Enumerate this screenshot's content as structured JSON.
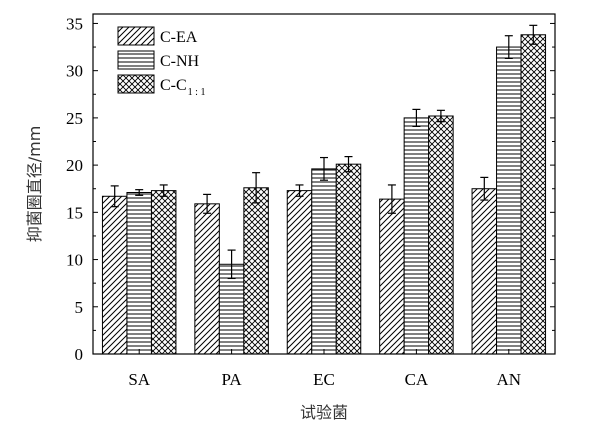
{
  "chart_data": {
    "type": "bar",
    "categories": [
      "SA",
      "PA",
      "EC",
      "CA",
      "AN"
    ],
    "series": [
      {
        "name": "C-EA",
        "name_main": "C-EA",
        "name_sub": "",
        "pattern": "diagonal",
        "values": [
          16.7,
          15.9,
          17.3,
          16.4,
          17.5
        ],
        "errors": [
          1.1,
          1.0,
          0.6,
          1.5,
          1.2
        ]
      },
      {
        "name": "C-NH",
        "name_main": "C-NH",
        "name_sub": "",
        "pattern": "horizontal",
        "values": [
          17.1,
          9.5,
          19.6,
          25.0,
          32.5
        ],
        "errors": [
          0.3,
          1.5,
          1.2,
          0.9,
          1.2
        ]
      },
      {
        "name": "C-C1:1",
        "name_main": "C-C",
        "name_sub": "1 : 1",
        "pattern": "crosshatch",
        "values": [
          17.3,
          17.6,
          20.1,
          25.2,
          33.8
        ],
        "errors": [
          0.6,
          1.6,
          0.8,
          0.6,
          1.0
        ]
      }
    ],
    "xlabel": "试验菌",
    "ylabel": "抑菌圈直径/mm",
    "ylim": [
      0,
      36
    ],
    "yticks": [
      0,
      5,
      10,
      15,
      20,
      25,
      30,
      35
    ],
    "grid": false,
    "legend_position": "top-left"
  }
}
